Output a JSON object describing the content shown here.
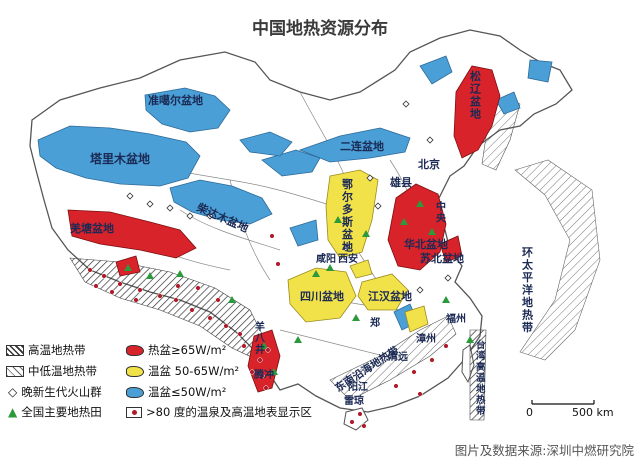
{
  "title": "中国地热资源分布",
  "credit": "图片及数据来源:深圳中燃研究院",
  "scale": {
    "zero": "0",
    "end": "500 km"
  },
  "colors": {
    "sea": "#ffffff",
    "land": "#ffffff",
    "border": "#555555",
    "warm_basin": "#4a9fd6",
    "mid_basin": "#f2e24a",
    "hot_basin": "#d8232a",
    "volcano": "#ffffff",
    "geothermal_field": "#2a9a3a",
    "hot_spring": "#b01b2a"
  },
  "legend": {
    "high_temp_belt": "高温地热带",
    "mid_low_temp_belt": "中低温地热带",
    "volcano": "晚新生代火山群",
    "geothermal_field": "全国主要地热田",
    "hot_basin": "热盆≥65W/m²",
    "mid_basin": "温盆 50-65W/m²",
    "warm_basin": "温盆≤50W/m²",
    "hot_spring": ">80 度的温泉及高温地表显示区"
  },
  "labels": {
    "junggar": "准噶尔盆地",
    "tarim": "塔里木盆地",
    "qaidam": "柴达木盆地",
    "qiangtang": "羌塘盆地",
    "erlian": "二连盆地",
    "ordos": "鄂尔多斯盆地",
    "songliao": "松辽盆地",
    "beijing": "北京",
    "xiongxian": "雄县",
    "huabei": "华北盆地",
    "subei": "苏北盆地",
    "xian": "西安",
    "xianyang": "咸阳",
    "sichuan": "四川盆地",
    "jianghan": "江汉盆地",
    "yangbajing": "羊八井",
    "tengchong": "腾冲",
    "southeast_belt": "东南沿海地热带",
    "taiwan_belt": "台湾高温地热带",
    "pacific_belt": "环太平洋地热带",
    "zhongyang": "中央",
    "fuzhou": "福州",
    "zhangzhou": "漳州",
    "qingyuan": "清远",
    "yangjiang": "阳江",
    "leizhou": "雷琼",
    "zhengzhou": "郑",
    "hubei_lbl": "湖"
  }
}
